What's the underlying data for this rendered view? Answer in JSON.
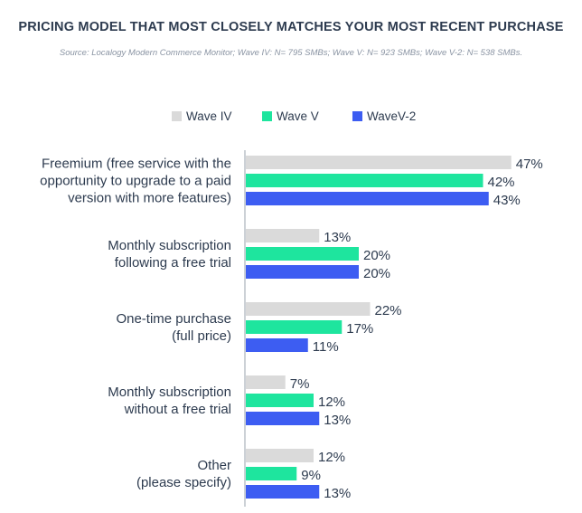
{
  "chart_data": {
    "type": "bar",
    "orientation": "horizontal",
    "title": "PRICING MODEL THAT MOST CLOSELY MATCHES YOUR MOST RECENT PURCHASE",
    "subtitle": "Source: Localogy Modern Commerce Monitor; Wave IV: N= 795 SMBs; Wave V: N= 923 SMBs; Wave V-2: N= 538 SMBs.",
    "categories": [
      [
        "Freemium (free service with the",
        "opportunity to upgrade to a paid",
        "version with more features)"
      ],
      [
        "Monthly subscription",
        "following a free trial"
      ],
      [
        "One-time purchase",
        "(full price)"
      ],
      [
        "Monthly subscription",
        "without a free trial"
      ],
      [
        "Other",
        "(please specify)"
      ]
    ],
    "series": [
      {
        "name": "Wave IV",
        "color": "#dadada",
        "values": [
          47,
          13,
          22,
          7,
          12
        ]
      },
      {
        "name": "Wave V",
        "color": "#1ee59e",
        "values": [
          42,
          20,
          17,
          12,
          9
        ]
      },
      {
        "name": "WaveV-2",
        "color": "#3d5df2",
        "values": [
          43,
          20,
          11,
          13,
          13
        ]
      }
    ],
    "value_suffix": "%",
    "legend_position": "top",
    "grid": false
  }
}
